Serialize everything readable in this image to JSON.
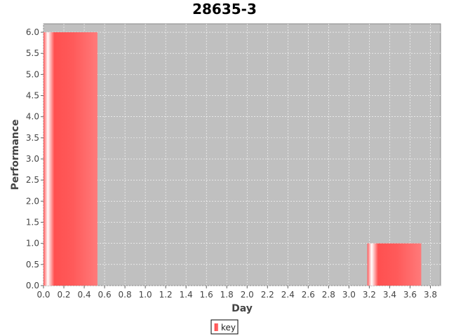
{
  "chart_data": {
    "type": "bar",
    "title": "28635-3",
    "xlabel": "Day",
    "ylabel": "Performance",
    "xlim": [
      0.0,
      3.9
    ],
    "ylim": [
      0.0,
      6.2
    ],
    "x_ticks": [
      "0.0",
      "0.2",
      "0.4",
      "0.6",
      "0.8",
      "1.0",
      "1.2",
      "1.4",
      "1.6",
      "1.8",
      "2.0",
      "2.2",
      "2.4",
      "2.6",
      "2.8",
      "3.0",
      "3.2",
      "3.4",
      "3.6",
      "3.8"
    ],
    "y_ticks": [
      "0.0",
      "0.5",
      "1.0",
      "1.5",
      "2.0",
      "2.5",
      "3.0",
      "3.5",
      "4.0",
      "4.5",
      "5.0",
      "5.5",
      "6.0"
    ],
    "grid": true,
    "legend_position": "bottom-center",
    "series": [
      {
        "name": "key",
        "color": "#ff5555",
        "bars": [
          {
            "x_start": 0.0,
            "x_end": 0.53,
            "value": 6.0
          },
          {
            "x_start": 3.18,
            "x_end": 3.71,
            "value": 1.0
          }
        ]
      }
    ]
  },
  "colors": {
    "plot_background": "#c0c0c0",
    "grid": "#ffffff",
    "bar": "#ff5555"
  }
}
